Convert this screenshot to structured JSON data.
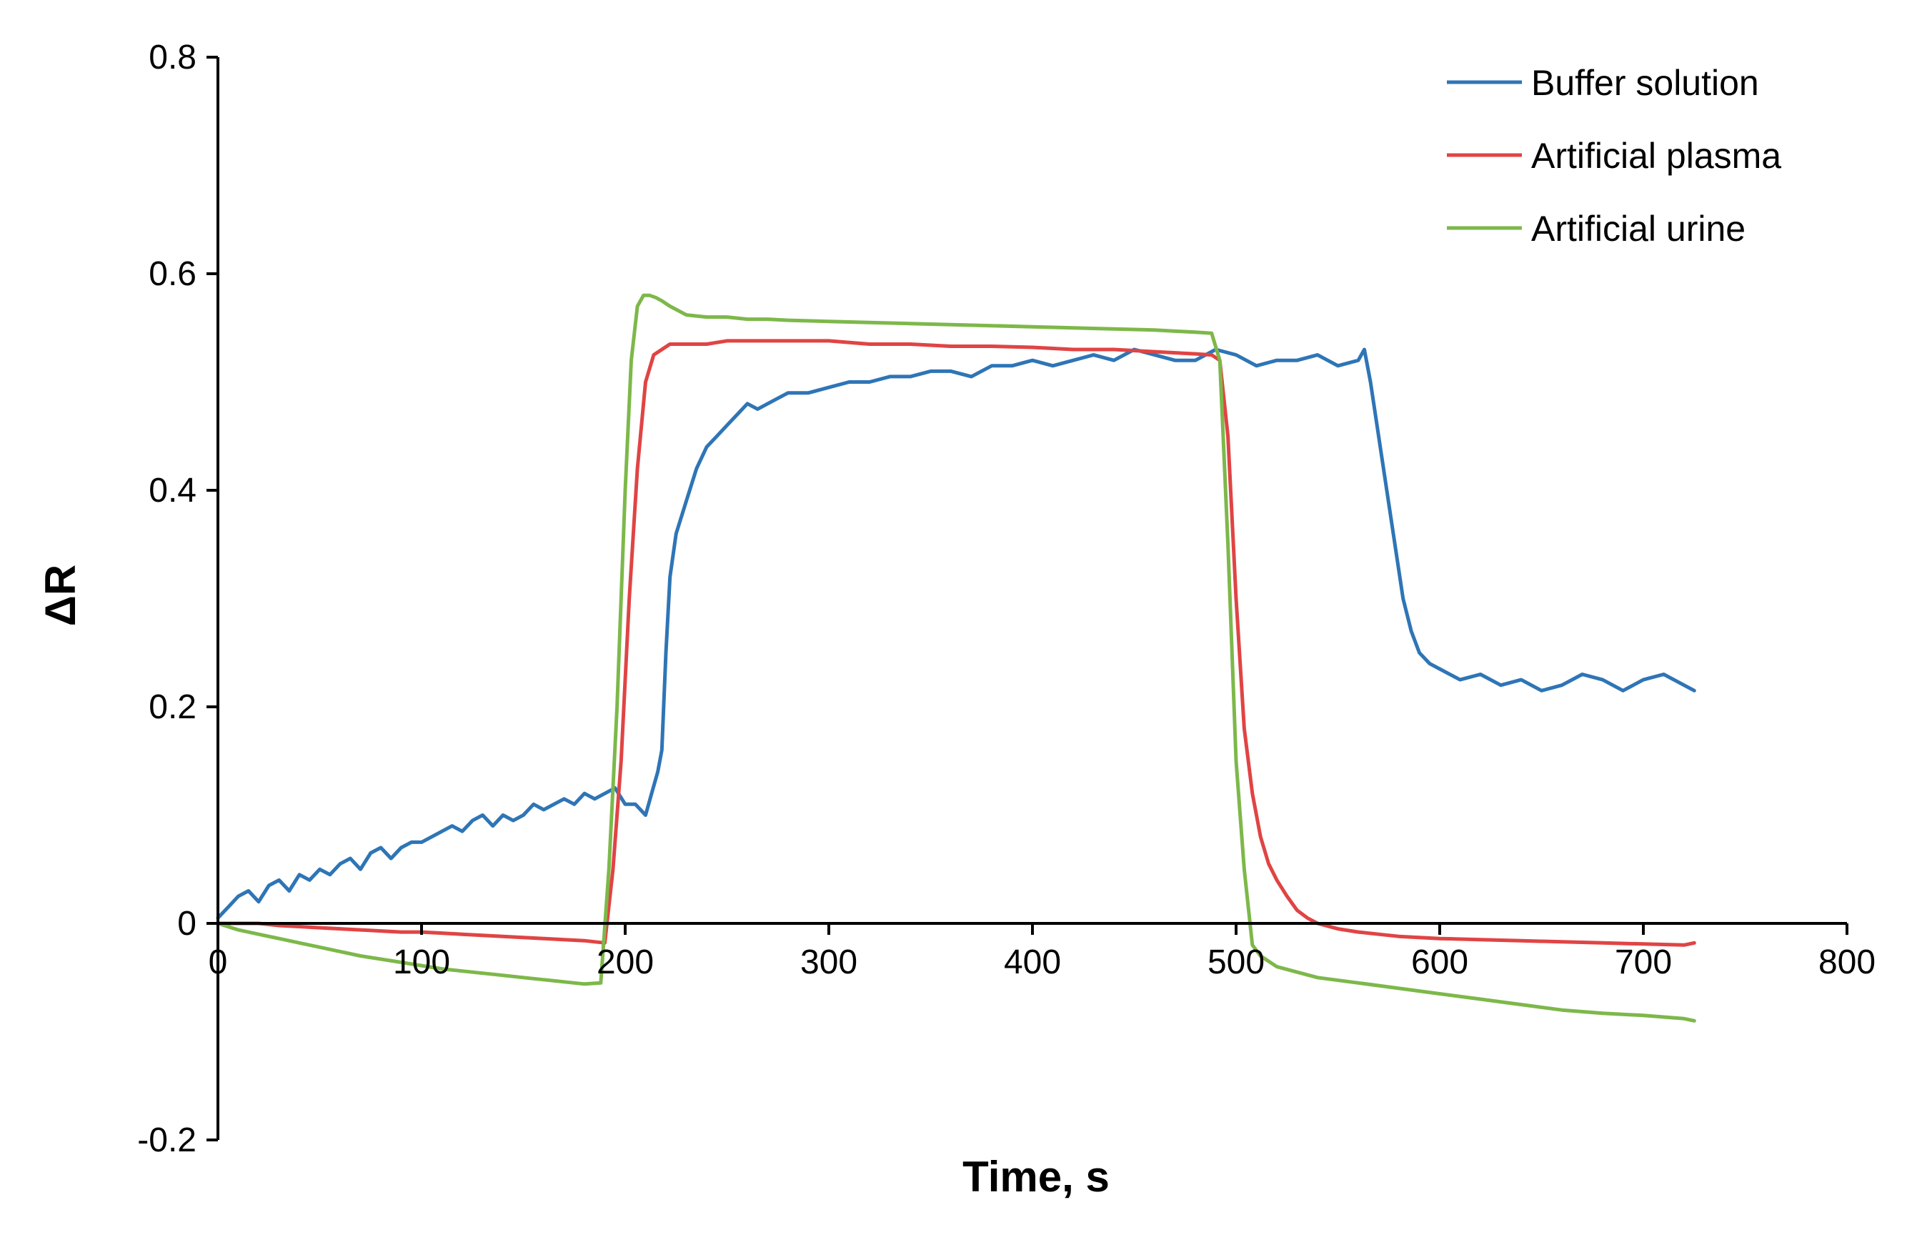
{
  "chart_data": {
    "type": "line",
    "title": "",
    "xlabel": "Time, s",
    "ylabel": "ΔR",
    "xlim": [
      0,
      800
    ],
    "ylim": [
      -0.2,
      0.8
    ],
    "x_ticks": [
      0,
      100,
      200,
      300,
      400,
      500,
      600,
      700,
      800
    ],
    "x_tick_labels": [
      "0",
      "100",
      "200",
      "300",
      "400",
      "500",
      "600",
      "700",
      "800"
    ],
    "y_ticks": [
      -0.2,
      0,
      0.2,
      0.4,
      0.6,
      0.8
    ],
    "y_tick_labels": [
      "-0.2",
      "0",
      "0.2",
      "0.4",
      "0.6",
      "0.8"
    ],
    "grid": false,
    "legend_position": "top-right",
    "series": [
      {
        "name": "Buffer solution",
        "color": "#2E75B6",
        "x": [
          0,
          5,
          10,
          15,
          20,
          25,
          30,
          35,
          40,
          45,
          50,
          55,
          60,
          65,
          70,
          75,
          80,
          85,
          90,
          95,
          100,
          105,
          110,
          115,
          120,
          125,
          130,
          135,
          140,
          145,
          150,
          155,
          160,
          165,
          170,
          175,
          180,
          185,
          190,
          195,
          200,
          205,
          210,
          213,
          216,
          218,
          220,
          222,
          225,
          230,
          235,
          240,
          245,
          250,
          255,
          260,
          265,
          270,
          275,
          280,
          290,
          300,
          310,
          320,
          330,
          340,
          350,
          360,
          370,
          380,
          390,
          400,
          410,
          420,
          430,
          440,
          450,
          460,
          470,
          480,
          490,
          500,
          510,
          520,
          530,
          540,
          550,
          560,
          563,
          566,
          570,
          574,
          578,
          582,
          586,
          590,
          595,
          600,
          610,
          620,
          630,
          640,
          650,
          660,
          670,
          680,
          690,
          700,
          710,
          720,
          725
        ],
        "y": [
          0.005,
          0.015,
          0.025,
          0.03,
          0.02,
          0.035,
          0.04,
          0.03,
          0.045,
          0.04,
          0.05,
          0.045,
          0.055,
          0.06,
          0.05,
          0.065,
          0.07,
          0.06,
          0.07,
          0.075,
          0.075,
          0.08,
          0.085,
          0.09,
          0.085,
          0.095,
          0.1,
          0.09,
          0.1,
          0.095,
          0.1,
          0.11,
          0.105,
          0.11,
          0.115,
          0.11,
          0.12,
          0.115,
          0.12,
          0.125,
          0.11,
          0.11,
          0.1,
          0.12,
          0.14,
          0.16,
          0.25,
          0.32,
          0.36,
          0.39,
          0.42,
          0.44,
          0.45,
          0.46,
          0.47,
          0.48,
          0.475,
          0.48,
          0.485,
          0.49,
          0.49,
          0.495,
          0.5,
          0.5,
          0.505,
          0.505,
          0.51,
          0.51,
          0.505,
          0.515,
          0.515,
          0.52,
          0.515,
          0.52,
          0.525,
          0.52,
          0.53,
          0.525,
          0.52,
          0.52,
          0.53,
          0.525,
          0.515,
          0.52,
          0.52,
          0.525,
          0.515,
          0.52,
          0.53,
          0.5,
          0.45,
          0.4,
          0.35,
          0.3,
          0.27,
          0.25,
          0.24,
          0.235,
          0.225,
          0.23,
          0.22,
          0.225,
          0.215,
          0.22,
          0.23,
          0.225,
          0.215,
          0.225,
          0.23,
          0.22,
          0.215
        ]
      },
      {
        "name": "Artificial plasma",
        "color": "#E04444",
        "x": [
          0,
          10,
          20,
          30,
          40,
          50,
          60,
          70,
          80,
          90,
          100,
          110,
          120,
          130,
          140,
          150,
          160,
          170,
          180,
          190,
          194,
          198,
          202,
          206,
          210,
          214,
          218,
          222,
          226,
          230,
          240,
          250,
          260,
          270,
          280,
          290,
          300,
          320,
          340,
          360,
          380,
          400,
          420,
          440,
          460,
          480,
          488,
          492,
          496,
          500,
          504,
          508,
          512,
          516,
          520,
          525,
          530,
          535,
          540,
          550,
          560,
          570,
          580,
          590,
          600,
          620,
          640,
          660,
          680,
          700,
          720,
          725
        ],
        "y": [
          0.0,
          0.0,
          0.0,
          -0.002,
          -0.003,
          -0.004,
          -0.005,
          -0.006,
          -0.007,
          -0.008,
          -0.008,
          -0.009,
          -0.01,
          -0.011,
          -0.012,
          -0.013,
          -0.014,
          -0.015,
          -0.016,
          -0.018,
          0.05,
          0.15,
          0.3,
          0.42,
          0.5,
          0.525,
          0.53,
          0.535,
          0.535,
          0.535,
          0.535,
          0.538,
          0.538,
          0.538,
          0.538,
          0.538,
          0.538,
          0.535,
          0.535,
          0.533,
          0.533,
          0.532,
          0.53,
          0.53,
          0.528,
          0.526,
          0.525,
          0.52,
          0.45,
          0.3,
          0.18,
          0.12,
          0.08,
          0.055,
          0.04,
          0.025,
          0.012,
          0.005,
          0.0,
          -0.005,
          -0.008,
          -0.01,
          -0.012,
          -0.013,
          -0.014,
          -0.015,
          -0.016,
          -0.017,
          -0.018,
          -0.019,
          -0.02,
          -0.018
        ]
      },
      {
        "name": "Artificial urine",
        "color": "#7DB84A",
        "x": [
          0,
          10,
          20,
          30,
          40,
          50,
          60,
          70,
          80,
          90,
          100,
          110,
          120,
          130,
          140,
          150,
          160,
          170,
          180,
          188,
          192,
          196,
          200,
          203,
          206,
          209,
          212,
          215,
          218,
          222,
          226,
          230,
          240,
          250,
          260,
          270,
          280,
          300,
          320,
          340,
          360,
          380,
          400,
          420,
          440,
          460,
          480,
          488,
          492,
          496,
          500,
          504,
          508,
          512,
          516,
          520,
          530,
          540,
          560,
          580,
          600,
          620,
          640,
          660,
          680,
          700,
          720,
          725
        ],
        "y": [
          0.0,
          -0.006,
          -0.01,
          -0.014,
          -0.018,
          -0.022,
          -0.026,
          -0.03,
          -0.033,
          -0.036,
          -0.039,
          -0.042,
          -0.044,
          -0.046,
          -0.048,
          -0.05,
          -0.052,
          -0.054,
          -0.056,
          -0.055,
          0.05,
          0.2,
          0.4,
          0.52,
          0.57,
          0.58,
          0.58,
          0.578,
          0.575,
          0.57,
          0.566,
          0.562,
          0.56,
          0.56,
          0.558,
          0.558,
          0.557,
          0.556,
          0.555,
          0.554,
          0.553,
          0.552,
          0.551,
          0.55,
          0.549,
          0.548,
          0.546,
          0.545,
          0.52,
          0.35,
          0.15,
          0.05,
          -0.02,
          -0.03,
          -0.035,
          -0.04,
          -0.045,
          -0.05,
          -0.055,
          -0.06,
          -0.065,
          -0.07,
          -0.075,
          -0.08,
          -0.083,
          -0.085,
          -0.088,
          -0.09
        ]
      }
    ]
  }
}
